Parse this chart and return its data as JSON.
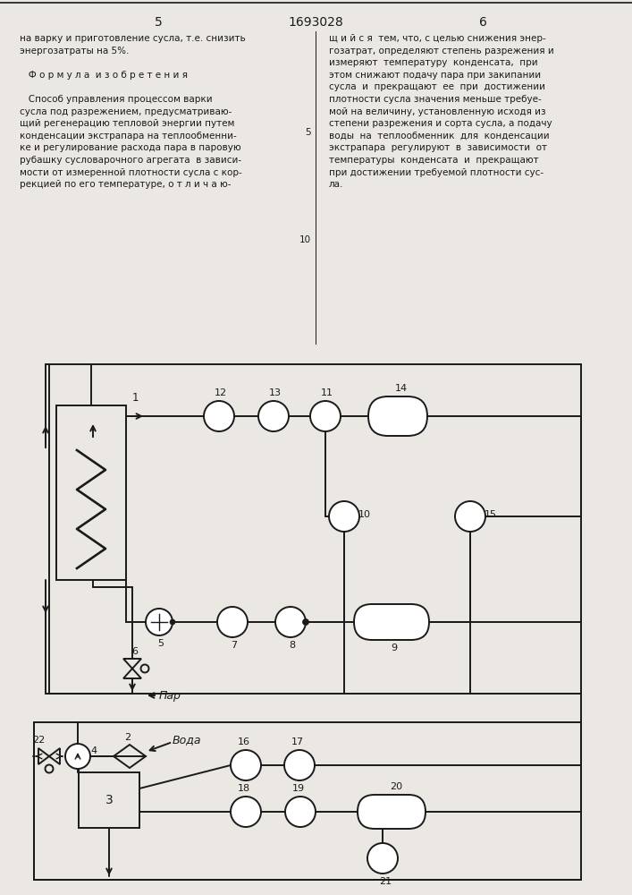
{
  "page_number_left": "5",
  "page_number_center": "1693028",
  "page_number_right": "6",
  "text_left": "на варку и приготовление сусла, т.е. снизить\nэнергозатраты на 5%.\n\n   Ф о р м у л а  и з о б р е т е н и я\n\n   Способ управления процессом варки\nсусла под разрежением, предусматриваю-\nщий регенерацию тепловой энергии путем\nконденсации экстрапара на теплообменни-\nке и регулирование расхода пара в паровую\nрубашку сусловарочного агрегата  в зависи-\nмости от измеренной плотности сусла с кор-\nрекцией по его температуре, о т л и ч а ю-",
  "text_right": "щ и й с я  тем, что, с целью снижения энер-\nгозатрат, определяют степень разрежения и\nизмеряют  температуру  конденсата,  при\nэтом снижают подачу пара при закипании\nсусла  и  прекращают  ее  при  достижении\nплотности сусла значения меньше требуе-\nмой на величину, установленную исходя из\nстепени разрежения и сорта сусла, а подачу\nводы  на  теплообменник  для  конденсации\nэкстрапара  регулируют  в  зависимости  от\nтемпературы  конденсата  и  прекращают\nпри достижении требуемой плотности сус-\nла.",
  "line_num_5": "5",
  "line_num_10": "10",
  "bg_color": "#ebe8e3",
  "line_color": "#1a1a1a",
  "text_color": "#1a1a1a"
}
